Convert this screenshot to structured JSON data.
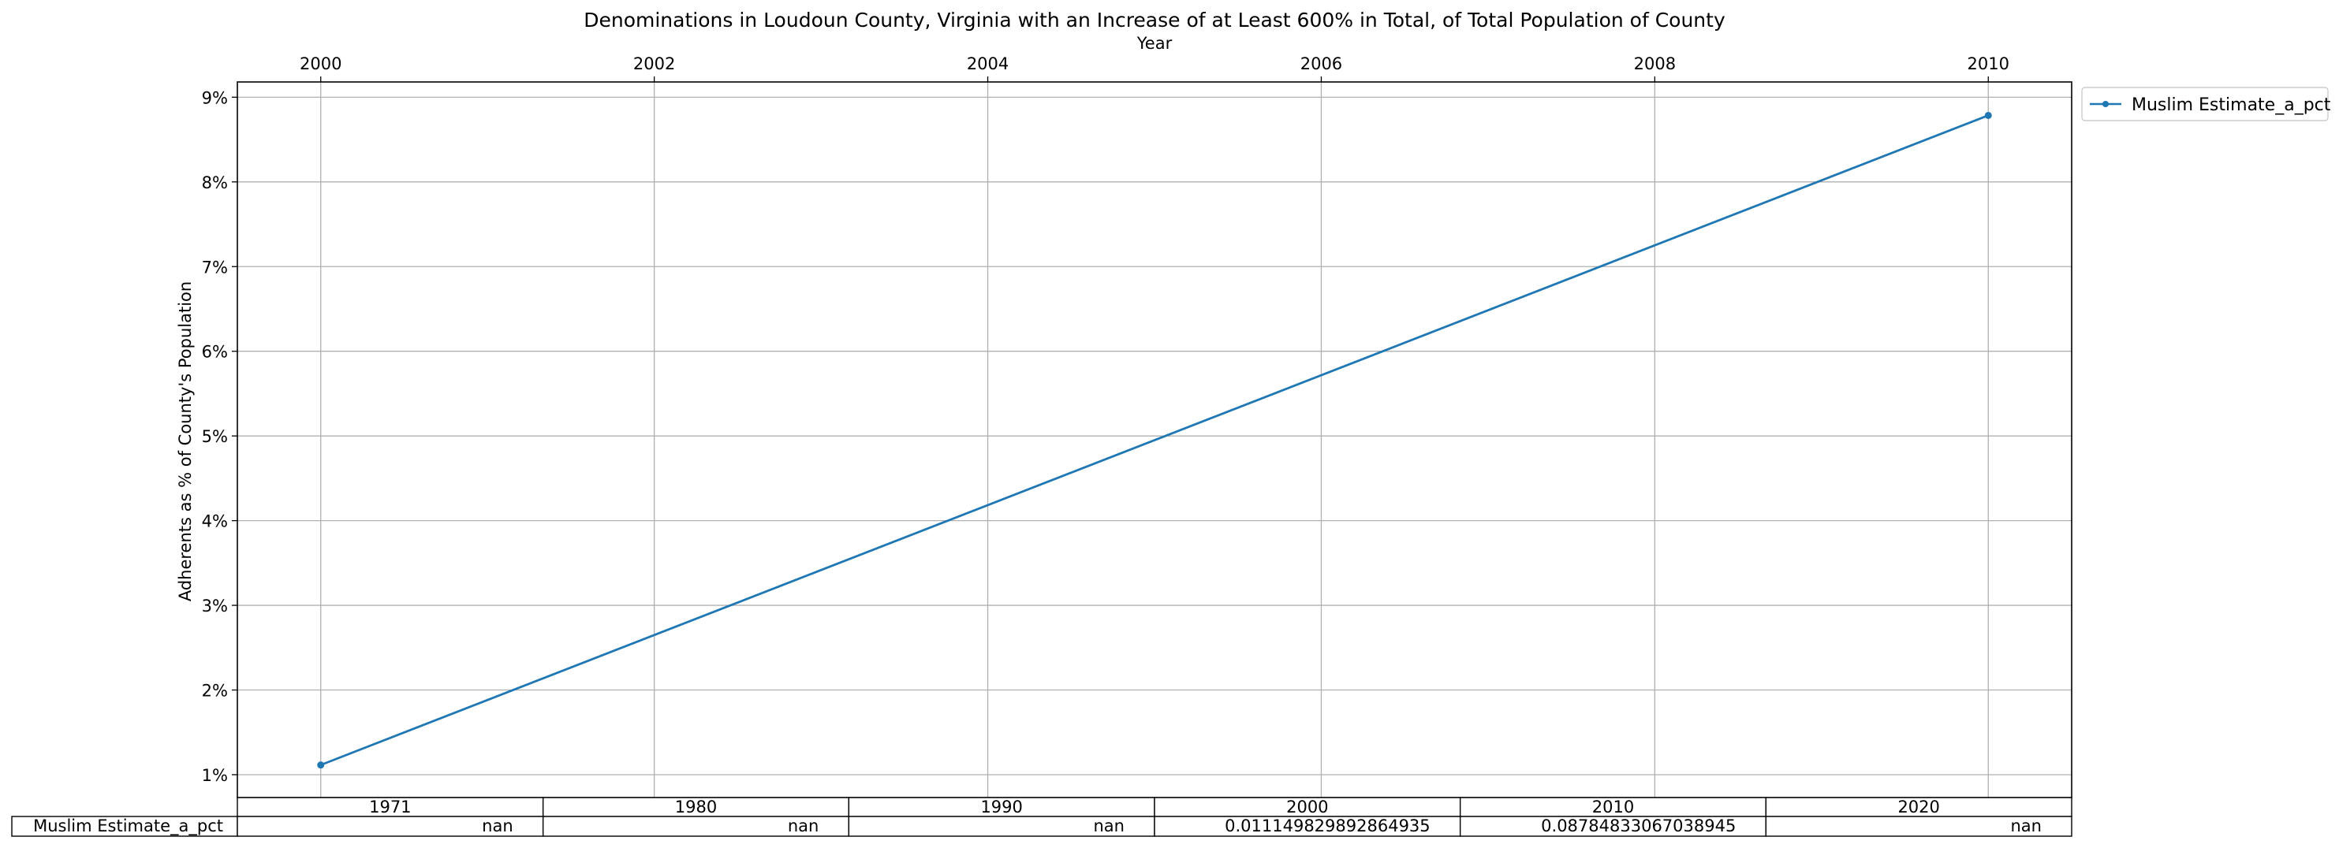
{
  "chart_data": {
    "type": "line",
    "title": "Denominations in Loudoun County, Virginia with an Increase of at Least 600% in Total, of Total Population of County",
    "xlabel": "Year",
    "ylabel": "Adherents as % of County's Population",
    "x": [
      2000,
      2010
    ],
    "x_ticks": [
      "2000",
      "2002",
      "2004",
      "2006",
      "2008",
      "2010"
    ],
    "x_tick_values": [
      2000,
      2002,
      2004,
      2006,
      2008,
      2010
    ],
    "xlim": [
      1999.5,
      2010.5
    ],
    "y_ticks": [
      "1%",
      "2%",
      "3%",
      "4%",
      "5%",
      "6%",
      "7%",
      "8%",
      "9%"
    ],
    "y_tick_values": [
      0.01,
      0.02,
      0.03,
      0.04,
      0.05,
      0.06,
      0.07,
      0.08,
      0.09
    ],
    "ylim": [
      0.0073,
      0.0918
    ],
    "grid": true,
    "x_axis_position": "top",
    "legend_position": "outside-top-right",
    "series": [
      {
        "name": "Muslim Estimate_a_pct",
        "color": "#1f77b4",
        "marker": "point",
        "values": [
          0.011149829892864935,
          0.08784833067038945
        ]
      }
    ],
    "table": {
      "columns": [
        "1971",
        "1980",
        "1990",
        "2000",
        "2010",
        "2020"
      ],
      "rows": [
        {
          "label": "Muslim Estimate_a_pct",
          "cells": [
            "nan",
            "nan",
            "nan",
            "0.011149829892864935",
            "0.08784833067038945",
            "nan"
          ]
        }
      ]
    }
  }
}
